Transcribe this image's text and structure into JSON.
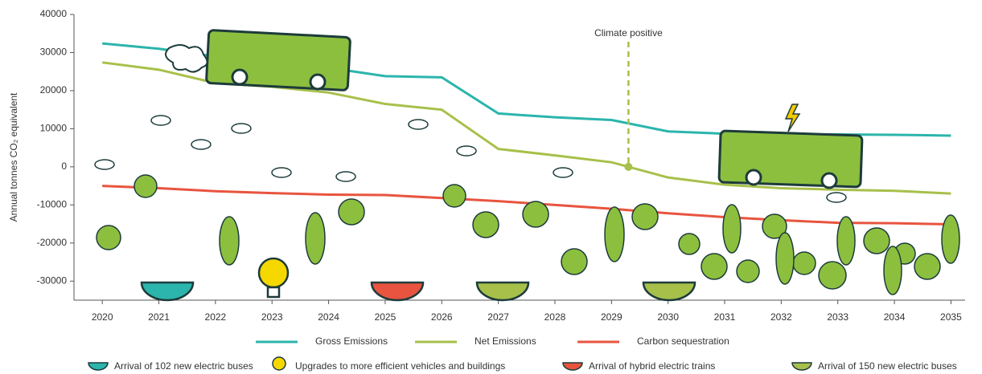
{
  "chart_data": {
    "type": "line",
    "y_label": "Annual tonnes CO₂ equivalent",
    "x": [
      2020,
      2021,
      2022,
      2023,
      2024,
      2025,
      2026,
      2027,
      2028,
      2029,
      2030,
      2031,
      2032,
      2033,
      2034,
      2035
    ],
    "xlim": [
      2019.5,
      2035.25
    ],
    "xticks": [
      2020,
      2021,
      2022,
      2023,
      2024,
      2025,
      2026,
      2027,
      2028,
      2029,
      2030,
      2031,
      2032,
      2033,
      2034,
      2035
    ],
    "ylim": [
      -35000,
      40000
    ],
    "yticks": [
      40000,
      30000,
      20000,
      10000,
      0,
      -10000,
      -20000,
      -30000
    ],
    "series": [
      {
        "name": "Gross Emissions",
        "color": "#2bb5ac",
        "values": [
          32400,
          31000,
          29000,
          28000,
          26000,
          23800,
          23500,
          14000,
          13000,
          12300,
          9300,
          8700,
          8600,
          8500,
          8400,
          8200
        ]
      },
      {
        "name": "Net Emissions",
        "color": "#a7c04a",
        "values": [
          27400,
          25500,
          22000,
          21000,
          19500,
          16500,
          15000,
          4700,
          3000,
          1200,
          -2800,
          -4700,
          -5600,
          -6000,
          -6300,
          -7000
        ]
      },
      {
        "name": "Carbon sequestration",
        "color": "#e8543f",
        "values": [
          -5000,
          -5600,
          -6400,
          -6900,
          -7300,
          -7400,
          -8200,
          -9000,
          -10000,
          -11000,
          -12200,
          -13200,
          -14000,
          -14700,
          -14800,
          -15100
        ]
      }
    ],
    "annotation": {
      "text": "Climate positive",
      "x": 2029.3
    },
    "icon_legend": [
      "Arrival of 102 new electric buses",
      "Upgrades to more efficient vehicles and buildings",
      "Arrival of hybrid electric trains",
      "Arrival of 150 new electric buses"
    ]
  }
}
